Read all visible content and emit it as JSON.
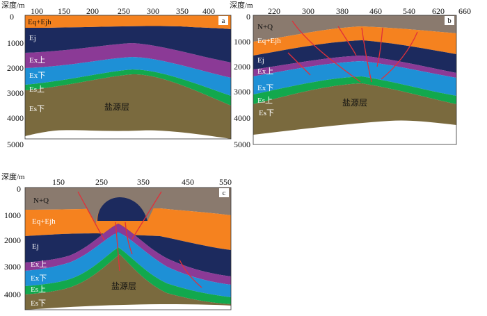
{
  "colors": {
    "nq": "#8a7a6e",
    "eq": "#f5821f",
    "ej": "#1c2a5e",
    "exs": "#8b3a96",
    "exx": "#1e90d6",
    "es": "#12a84d",
    "salt": "#7a6a3e",
    "fault": "#e0303a"
  },
  "y_axis_label": "深度/m",
  "depth_ticks": [
    "0",
    "1000",
    "2000",
    "3000",
    "4000",
    "5000"
  ],
  "panels": [
    {
      "id": "a",
      "label": "a",
      "x_ticks": [
        "100",
        "150",
        "200",
        "250",
        "300",
        "350",
        "400"
      ],
      "layers": [
        "Eq+Ejh",
        "Ej",
        "Ex上",
        "Ex下",
        "Es上",
        "Es下"
      ],
      "salt": "盐源层"
    },
    {
      "id": "b",
      "label": "b",
      "x_ticks": [
        "220",
        "300",
        "380",
        "460",
        "540",
        "620",
        "660"
      ],
      "layers": [
        "N+Q",
        "Eq+Ejh",
        "Ej",
        "Ex上",
        "Ex下",
        "Es上",
        "Es下"
      ],
      "salt": "盐源层"
    },
    {
      "id": "c",
      "label": "c",
      "x_ticks": [
        "150",
        "250",
        "350",
        "450",
        "550"
      ],
      "layers": [
        "N+Q",
        "Eq+Ejh",
        "Ej",
        "Ex上",
        "Ex下",
        "Es上",
        "Es下"
      ],
      "salt": "盐源层"
    }
  ]
}
